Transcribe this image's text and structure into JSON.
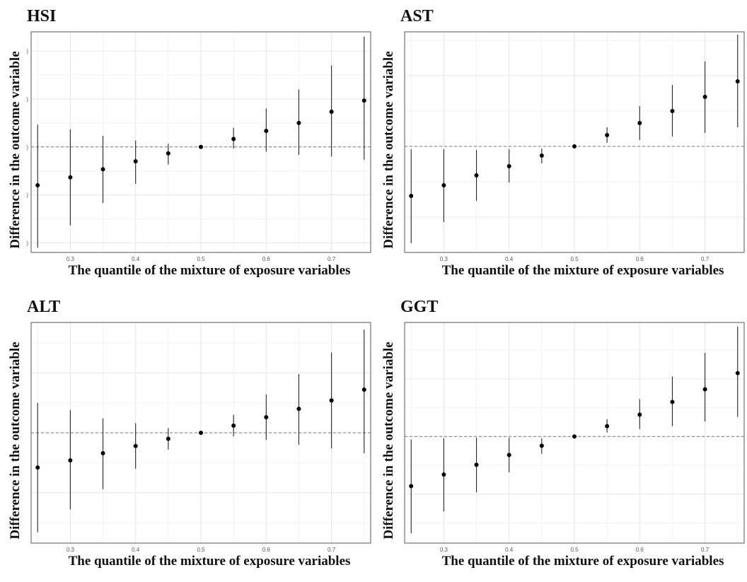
{
  "chart_data": [
    {
      "type": "scatter",
      "title": "HSI",
      "xlabel": "The quantile of the mixture of exposure variables",
      "ylabel": "Difference in the outcome variable",
      "x": [
        0.25,
        0.3,
        0.35,
        0.4,
        0.45,
        0.5,
        0.55,
        0.6,
        0.65,
        0.7,
        0.75
      ],
      "y": [
        -0.24,
        -0.19,
        -0.14,
        -0.09,
        -0.04,
        0.0,
        0.05,
        0.1,
        0.15,
        0.22,
        0.29
      ],
      "ylow": [
        -0.63,
        -0.49,
        -0.35,
        -0.23,
        -0.11,
        0.0,
        -0.01,
        -0.03,
        -0.05,
        -0.06,
        -0.08
      ],
      "yhigh": [
        0.14,
        0.11,
        0.07,
        0.04,
        0.02,
        0.0,
        0.12,
        0.24,
        0.36,
        0.51,
        0.69
      ],
      "xlim": [
        0.24,
        0.76
      ],
      "ylim": [
        -0.66,
        0.72
      ],
      "xticks": [
        0.3,
        0.4,
        0.5,
        0.6,
        0.7
      ],
      "xtick_labels": [
        "0.3",
        "0.4",
        "0.5",
        "0.6",
        "0.7"
      ],
      "yticks": [
        -0.6,
        -0.3,
        0.0,
        0.3,
        0.6
      ],
      "ytick_labels": [
        ")",
        ")",
        ")",
        ")",
        ")"
      ],
      "reference_line": 0,
      "grid": true
    },
    {
      "type": "scatter",
      "title": "AST",
      "xlabel": "The quantile of the mixture of exposure variables",
      "ylabel": "Difference in the outcome variable",
      "x": [
        0.25,
        0.3,
        0.35,
        0.4,
        0.45,
        0.5,
        0.55,
        0.6,
        0.65,
        0.7,
        0.75
      ],
      "y": [
        -0.7,
        -0.55,
        -0.41,
        -0.28,
        -0.13,
        0.0,
        0.16,
        0.33,
        0.5,
        0.7,
        0.92
      ],
      "ylow": [
        -1.37,
        -1.07,
        -0.77,
        -0.51,
        -0.24,
        0.0,
        0.05,
        0.09,
        0.14,
        0.19,
        0.27
      ],
      "yhigh": [
        -0.04,
        -0.04,
        -0.05,
        -0.04,
        -0.03,
        0.0,
        0.27,
        0.57,
        0.87,
        1.2,
        1.58
      ],
      "xlim": [
        0.24,
        0.76
      ],
      "ylim": [
        -1.5,
        1.62
      ],
      "xticks": [
        0.3,
        0.4,
        0.5,
        0.6,
        0.7
      ],
      "xtick_labels": [
        "0.3",
        "0.4",
        "0.5",
        "0.6",
        "0.7"
      ],
      "yticks": [
        -1.0,
        0.0,
        1.0
      ],
      "ytick_labels": [
        "",
        "",
        ""
      ],
      "reference_line": 0,
      "grid": true
    },
    {
      "type": "scatter",
      "title": "ALT",
      "xlabel": "The quantile of the mixture of exposure variables",
      "ylabel": "Difference in the outcome variable",
      "x": [
        0.25,
        0.3,
        0.35,
        0.4,
        0.45,
        0.5,
        0.55,
        0.6,
        0.65,
        0.7,
        0.75
      ],
      "y": [
        -0.29,
        -0.23,
        -0.17,
        -0.11,
        -0.05,
        0.0,
        0.06,
        0.13,
        0.2,
        0.27,
        0.36
      ],
      "ylow": [
        -0.83,
        -0.64,
        -0.47,
        -0.3,
        -0.14,
        0.0,
        -0.03,
        -0.06,
        -0.1,
        -0.13,
        -0.17
      ],
      "yhigh": [
        0.25,
        0.19,
        0.12,
        0.08,
        0.04,
        0.0,
        0.15,
        0.32,
        0.49,
        0.67,
        0.86
      ],
      "xlim": [
        0.24,
        0.76
      ],
      "ylim": [
        -0.92,
        0.92
      ],
      "xticks": [
        0.3,
        0.4,
        0.5,
        0.6,
        0.7
      ],
      "xtick_labels": [
        "0.3",
        "0.4",
        "0.5",
        "0.6",
        "0.7"
      ],
      "yticks": [
        -0.5,
        0.0,
        0.5
      ],
      "ytick_labels": [
        "",
        "",
        ""
      ],
      "reference_line": 0,
      "grid": true
    },
    {
      "type": "scatter",
      "title": "GGT",
      "xlabel": "The quantile of the mixture of exposure variables",
      "ylabel": "Difference in the outcome variable",
      "x": [
        0.25,
        0.3,
        0.35,
        0.4,
        0.45,
        0.5,
        0.55,
        0.6,
        0.65,
        0.7,
        0.75
      ],
      "y": [
        -0.86,
        -0.66,
        -0.49,
        -0.32,
        -0.16,
        0.0,
        0.18,
        0.38,
        0.6,
        0.82,
        1.1
      ],
      "ylow": [
        -1.68,
        -1.3,
        -0.97,
        -0.62,
        -0.3,
        0.0,
        0.07,
        0.13,
        0.18,
        0.26,
        0.34
      ],
      "yhigh": [
        -0.05,
        -0.03,
        -0.02,
        -0.02,
        -0.03,
        0.0,
        0.3,
        0.65,
        1.04,
        1.45,
        1.91
      ],
      "xlim": [
        0.24,
        0.76
      ],
      "ylim": [
        -1.85,
        1.98
      ],
      "xticks": [
        0.3,
        0.4,
        0.5,
        0.6,
        0.7
      ],
      "xtick_labels": [
        "0.3",
        "0.4",
        "0.5",
        "0.6",
        "0.7"
      ],
      "yticks": [
        -1.0,
        0.0,
        1.0
      ],
      "ytick_labels": [
        "",
        "",
        ""
      ],
      "reference_line": 0,
      "grid": true
    }
  ]
}
